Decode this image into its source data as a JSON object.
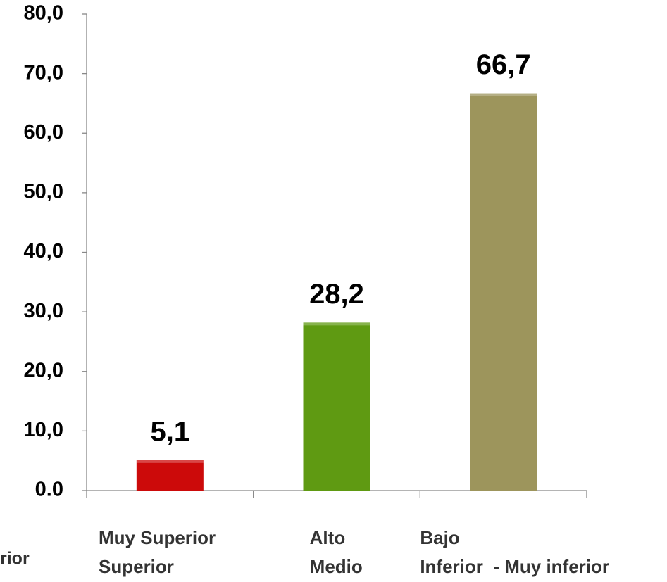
{
  "chart_data": {
    "type": "bar",
    "categories": [
      [
        "Muy Superior",
        "Superior"
      ],
      [
        "Alto",
        "Medio"
      ],
      [
        "Bajo",
        "Inferior  - Muy inferior"
      ]
    ],
    "values": [
      5.1,
      28.2,
      66.7
    ],
    "value_labels": [
      "5,1",
      "28,2",
      "66,7"
    ],
    "colors": [
      "#cc0a0a",
      "#5f9a12",
      "#9d955c"
    ],
    "ylim": [
      0,
      80
    ],
    "yticks": [
      {
        "value": 0,
        "label": "0.0"
      },
      {
        "value": 10,
        "label": "10,0"
      },
      {
        "value": 20,
        "label": "20,0"
      },
      {
        "value": 30,
        "label": "30,0"
      },
      {
        "value": 40,
        "label": "40,0"
      },
      {
        "value": 50,
        "label": "50,0"
      },
      {
        "value": 60,
        "label": "60,0"
      },
      {
        "value": 70,
        "label": "70,0"
      },
      {
        "value": 80,
        "label": "80,0"
      }
    ],
    "annotation": "rior"
  }
}
